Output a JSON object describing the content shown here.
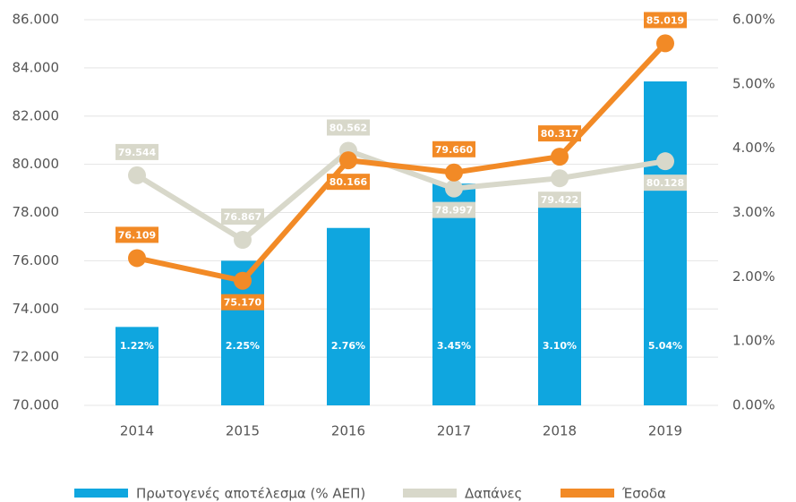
{
  "chart_data": {
    "type": "combo",
    "categories": [
      "2014",
      "2015",
      "2016",
      "2017",
      "2018",
      "2019"
    ],
    "series": [
      {
        "name": "Πρωτογενές αποτέλεσμα (% ΑΕΠ)",
        "type": "bar",
        "axis": "y2",
        "color": "#0fa6df",
        "values": [
          1.22,
          2.25,
          2.76,
          3.45,
          3.1,
          5.04
        ],
        "value_labels": [
          "1.22%",
          "2.25%",
          "2.76%",
          "3.45%",
          "3.10%",
          "5.04%"
        ]
      },
      {
        "name": "Δαπάνες",
        "type": "line",
        "color": "#d8d8ca",
        "values": [
          79544,
          76867,
          80562,
          78997,
          79422,
          80128
        ],
        "value_labels": [
          "79.544",
          "76.867",
          "80.562",
          "78.997",
          "79.422",
          "80.128"
        ]
      },
      {
        "name": "Έσοδα",
        "type": "line",
        "color": "#f28a26",
        "values": [
          76109,
          75170,
          80166,
          79660,
          80317,
          85019
        ],
        "value_labels": [
          "76.109",
          "75.170",
          "80.166",
          "79.660",
          "80.317",
          "85.019"
        ]
      }
    ],
    "ylim": [
      70000,
      86000
    ],
    "yticks": [
      {
        "value": 70000,
        "label": "70.000"
      },
      {
        "value": 72000,
        "label": "72.000"
      },
      {
        "value": 74000,
        "label": "74.000"
      },
      {
        "value": 76000,
        "label": "76.000"
      },
      {
        "value": 78000,
        "label": "78.000"
      },
      {
        "value": 80000,
        "label": "80.000"
      },
      {
        "value": 82000,
        "label": "82.000"
      },
      {
        "value": 84000,
        "label": "84.000"
      },
      {
        "value": 86000,
        "label": "86.000"
      }
    ],
    "y2lim": [
      0,
      6
    ],
    "y2ticks": [
      {
        "value": 0,
        "label": "0.00%"
      },
      {
        "value": 1,
        "label": "1.00%"
      },
      {
        "value": 2,
        "label": "2.00%"
      },
      {
        "value": 3,
        "label": "3.00%"
      },
      {
        "value": 4,
        "label": "4.00%"
      },
      {
        "value": 5,
        "label": "5.00%"
      },
      {
        "value": 6,
        "label": "6.00%"
      }
    ],
    "grid": true
  }
}
